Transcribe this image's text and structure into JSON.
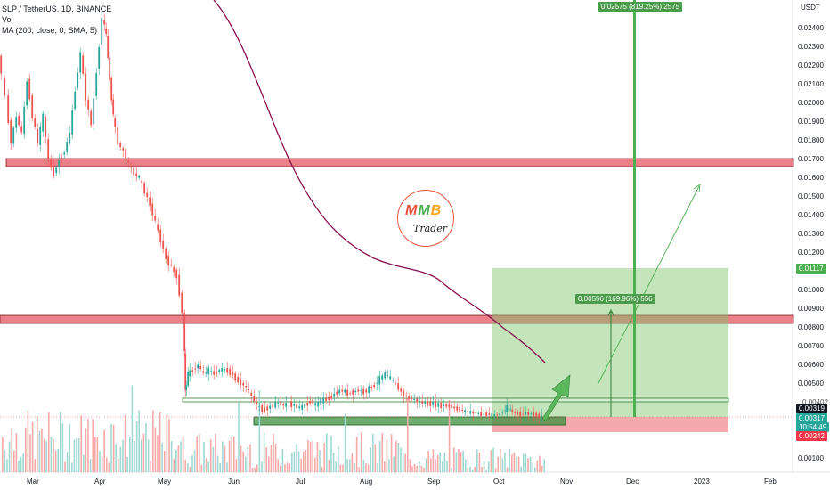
{
  "legend": {
    "symbol": "SLP / TetherUS, 1D, BINANCE",
    "vol": "Vol",
    "ma": "MA (200, close, 0, SMA, 5)"
  },
  "y_axis": {
    "unit": "USDT",
    "ticks": [
      "0.02400",
      "0.02300",
      "0.02200",
      "0.02100",
      "0.02000",
      "0.01900",
      "0.01800",
      "0.01700",
      "0.01600",
      "0.01500",
      "0.01400",
      "0.01300",
      "0.01200",
      "0.01000",
      "0.00900",
      "0.00800",
      "0.00700",
      "0.00600",
      "0.00500",
      "0.00100"
    ]
  },
  "x_axis": {
    "ticks": [
      "Mar",
      "Apr",
      "May",
      "Jun",
      "Jul",
      "Aug",
      "Sep",
      "Oct",
      "Nov",
      "Dec",
      "2023",
      "Feb"
    ]
  },
  "price_tags": {
    "target": "0.01117",
    "current_top": "0.00319",
    "current": "0.00317",
    "countdown": "10:54:49",
    "stop": "0.00242",
    "partial": "0.00402"
  },
  "measure_labels": {
    "big": "0.02575 (819.25%) 2575",
    "small": "0.00556 (169.96%) 556"
  },
  "logo": {
    "letters": [
      "M",
      "M",
      "B"
    ],
    "subtitle": "Trader"
  },
  "colors": {
    "up": "#26a69a",
    "down": "#ef5350",
    "ma": "#880e4f",
    "zone_red": "#e86a74",
    "zone_green": "#4caf50",
    "target_tag": "#4caf50",
    "stop_tag": "#f23645"
  }
}
